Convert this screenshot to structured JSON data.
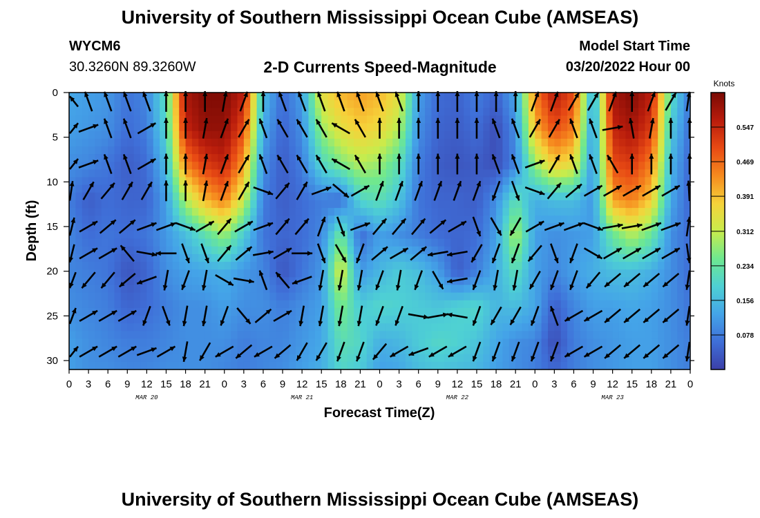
{
  "header": {
    "title": "University of Southern Mississippi Ocean Cube (AMSEAS)",
    "station": "WYCM6",
    "coords": "30.3260N  89.3260W",
    "chart_title": "2-D Currents Speed-Magnitude",
    "model_start_label": "Model Start Time",
    "model_start_value": "03/20/2022 Hour 00"
  },
  "footer": {
    "title": "University of Southern Mississippi Ocean Cube (AMSEAS)"
  },
  "colors": {
    "scale": [
      "#3b3fa8",
      "#3f6fd8",
      "#44a4e8",
      "#4ed0d4",
      "#6ee890",
      "#c8ec4c",
      "#f6d23a",
      "#f68a1e",
      "#e84a14",
      "#b81c0c",
      "#7a0a04"
    ],
    "arrow": "#000000"
  },
  "chart_data": {
    "type": "heatmap",
    "title": "2-D Currents Speed-Magnitude",
    "xlabel": "Forecast Time(Z)",
    "ylabel": "Depth (ft)",
    "x_ticks": [
      "0",
      "3",
      "6",
      "9",
      "12",
      "15",
      "18",
      "21",
      "0",
      "3",
      "6",
      "9",
      "12",
      "15",
      "18",
      "21",
      "0",
      "3",
      "6",
      "9",
      "12",
      "15",
      "18",
      "21",
      "0",
      "3",
      "6",
      "9",
      "12",
      "15",
      "18",
      "21",
      "0"
    ],
    "x_date_labels": [
      {
        "label": "MAR 20",
        "x_hour": 12
      },
      {
        "label": "MAR 21",
        "x_hour": 36
      },
      {
        "label": "MAR 22",
        "x_hour": 60
      },
      {
        "label": "MAR 23",
        "x_hour": 84
      }
    ],
    "xlim": [
      0,
      96
    ],
    "y_ticks": [
      "0",
      "5",
      "10",
      "15",
      "20",
      "25",
      "30"
    ],
    "ylim": [
      0,
      31
    ],
    "y_inverted": true,
    "colorbar": {
      "title": "Knots",
      "ticks": [
        "0.547",
        "0.469",
        "0.391",
        "0.312",
        "0.234",
        "0.156",
        "0.078"
      ],
      "range": [
        0,
        0.625
      ]
    },
    "speed_field": {
      "hours": [
        0,
        3,
        6,
        9,
        12,
        15,
        18,
        21,
        24,
        27,
        30,
        33,
        36,
        39,
        42,
        45,
        48,
        51,
        54,
        57,
        60,
        63,
        66,
        69,
        72,
        75,
        78,
        81,
        84,
        87,
        90,
        93,
        96
      ],
      "depths": [
        0,
        4,
        8,
        12,
        16,
        20,
        24,
        28,
        31
      ],
      "values": [
        [
          0.13,
          0.12,
          0.11,
          0.07,
          0.09,
          0.22,
          0.58,
          0.62,
          0.62,
          0.56,
          0.16,
          0.06,
          0.12,
          0.35,
          0.4,
          0.42,
          0.4,
          0.35,
          0.12,
          0.06,
          0.05,
          0.08,
          0.05,
          0.13,
          0.45,
          0.57,
          0.5,
          0.12,
          0.58,
          0.62,
          0.56,
          0.22,
          0.07
        ],
        [
          0.12,
          0.11,
          0.1,
          0.06,
          0.08,
          0.2,
          0.55,
          0.6,
          0.6,
          0.5,
          0.13,
          0.05,
          0.1,
          0.28,
          0.35,
          0.38,
          0.36,
          0.3,
          0.1,
          0.05,
          0.04,
          0.06,
          0.02,
          0.1,
          0.4,
          0.5,
          0.45,
          0.1,
          0.55,
          0.58,
          0.52,
          0.18,
          0.06
        ],
        [
          0.1,
          0.09,
          0.07,
          0.04,
          0.06,
          0.16,
          0.45,
          0.52,
          0.55,
          0.42,
          0.1,
          0.04,
          0.08,
          0.2,
          0.26,
          0.3,
          0.28,
          0.22,
          0.08,
          0.04,
          0.03,
          0.04,
          0.02,
          0.09,
          0.28,
          0.38,
          0.35,
          0.1,
          0.5,
          0.52,
          0.45,
          0.15,
          0.05
        ],
        [
          0.08,
          0.04,
          0.06,
          0.05,
          0.05,
          0.12,
          0.3,
          0.4,
          0.45,
          0.32,
          0.08,
          0.04,
          0.06,
          0.08,
          0.06,
          0.2,
          0.22,
          0.17,
          0.07,
          0.05,
          0.05,
          0.04,
          0.1,
          0.22,
          0.14,
          0.16,
          0.16,
          0.11,
          0.42,
          0.45,
          0.38,
          0.13,
          0.05
        ],
        [
          0.09,
          0.06,
          0.07,
          0.06,
          0.07,
          0.11,
          0.16,
          0.22,
          0.28,
          0.18,
          0.07,
          0.05,
          0.06,
          0.09,
          0.25,
          0.06,
          0.12,
          0.1,
          0.08,
          0.06,
          0.05,
          0.06,
          0.12,
          0.3,
          0.12,
          0.1,
          0.11,
          0.12,
          0.24,
          0.3,
          0.24,
          0.1,
          0.06
        ],
        [
          0.09,
          0.08,
          0.07,
          0.03,
          0.05,
          0.1,
          0.12,
          0.13,
          0.14,
          0.11,
          0.09,
          0.03,
          0.07,
          0.11,
          0.34,
          0.11,
          0.15,
          0.18,
          0.16,
          0.12,
          0.04,
          0.08,
          0.14,
          0.22,
          0.12,
          0.09,
          0.12,
          0.14,
          0.16,
          0.16,
          0.14,
          0.1,
          0.06
        ],
        [
          0.1,
          0.09,
          0.08,
          0.05,
          0.06,
          0.08,
          0.1,
          0.1,
          0.12,
          0.1,
          0.1,
          0.08,
          0.1,
          0.12,
          0.26,
          0.18,
          0.2,
          0.19,
          0.18,
          0.17,
          0.19,
          0.2,
          0.15,
          0.16,
          0.13,
          0.04,
          0.09,
          0.12,
          0.12,
          0.13,
          0.12,
          0.1,
          0.07
        ],
        [
          0.12,
          0.1,
          0.09,
          0.08,
          0.08,
          0.09,
          0.1,
          0.1,
          0.1,
          0.08,
          0.09,
          0.09,
          0.11,
          0.13,
          0.22,
          0.2,
          0.14,
          0.15,
          0.18,
          0.2,
          0.19,
          0.17,
          0.13,
          0.1,
          0.09,
          0.02,
          0.08,
          0.1,
          0.11,
          0.12,
          0.12,
          0.1,
          0.08
        ],
        [
          0.12,
          0.1,
          0.1,
          0.09,
          0.09,
          0.1,
          0.1,
          0.1,
          0.09,
          0.08,
          0.09,
          0.1,
          0.12,
          0.14,
          0.2,
          0.18,
          0.12,
          0.13,
          0.16,
          0.17,
          0.16,
          0.15,
          0.12,
          0.1,
          0.08,
          0.05,
          0.08,
          0.1,
          0.11,
          0.12,
          0.12,
          0.1,
          0.08
        ]
      ]
    },
    "vectors": {
      "hours": [
        0,
        3,
        6,
        9,
        12,
        15,
        18,
        21,
        24,
        27,
        30,
        33,
        36,
        39,
        42,
        45,
        48,
        51,
        54,
        57,
        60,
        63,
        66,
        69,
        72,
        75,
        78,
        81,
        84,
        87,
        90,
        93,
        96
      ],
      "depths": [
        1,
        4,
        8,
        11,
        15,
        18,
        21,
        25,
        29
      ],
      "directions_deg": [
        [
          -60,
          -20,
          -20,
          -20,
          -20,
          0,
          0,
          0,
          10,
          20,
          0,
          -20,
          -20,
          -20,
          -20,
          -20,
          -20,
          -20,
          0,
          0,
          0,
          0,
          0,
          0,
          20,
          20,
          30,
          30,
          20,
          0,
          20,
          30,
          20
        ],
        [
          60,
          70,
          -20,
          -20,
          60,
          0,
          0,
          10,
          20,
          30,
          -20,
          -30,
          -30,
          -30,
          -60,
          -30,
          0,
          0,
          0,
          0,
          0,
          0,
          -20,
          -20,
          30,
          30,
          -20,
          -20,
          80,
          -10,
          10,
          0,
          0
        ],
        [
          60,
          70,
          -20,
          -20,
          60,
          0,
          0,
          10,
          20,
          30,
          -20,
          -30,
          -30,
          -30,
          -60,
          -30,
          0,
          0,
          0,
          0,
          0,
          0,
          -20,
          -20,
          70,
          30,
          -20,
          -20,
          -30,
          0,
          0,
          0,
          0
        ],
        [
          20,
          30,
          40,
          30,
          30,
          0,
          0,
          10,
          20,
          30,
          110,
          40,
          30,
          70,
          130,
          60,
          20,
          20,
          20,
          20,
          20,
          20,
          -160,
          160,
          110,
          40,
          50,
          60,
          60,
          60,
          60,
          60,
          -10
        ],
        [
          30,
          60,
          50,
          50,
          70,
          70,
          110,
          60,
          40,
          60,
          70,
          40,
          40,
          20,
          160,
          70,
          40,
          40,
          40,
          50,
          60,
          160,
          150,
          -150,
          60,
          70,
          70,
          110,
          80,
          80,
          70,
          70,
          20
        ],
        [
          -150,
          60,
          60,
          -40,
          100,
          -90,
          160,
          160,
          40,
          50,
          80,
          60,
          90,
          160,
          150,
          -160,
          50,
          60,
          50,
          -100,
          -100,
          -150,
          -160,
          -160,
          -140,
          160,
          -160,
          120,
          60,
          60,
          60,
          60,
          160
        ],
        [
          -140,
          -140,
          -140,
          -130,
          -110,
          -170,
          -160,
          -170,
          120,
          100,
          -20,
          -40,
          -110,
          -170,
          -170,
          -170,
          -160,
          -170,
          -160,
          150,
          -100,
          -160,
          -170,
          -170,
          -150,
          -160,
          -160,
          -140,
          -130,
          -130,
          -130,
          -130,
          -160
        ],
        [
          40,
          60,
          60,
          60,
          -160,
          160,
          -170,
          -170,
          -160,
          140,
          50,
          60,
          -170,
          -170,
          -170,
          -170,
          -160,
          -160,
          100,
          80,
          -80,
          -160,
          -150,
          -150,
          -160,
          -20,
          -120,
          -120,
          -130,
          -130,
          -130,
          -130,
          -160
        ],
        [
          60,
          60,
          60,
          60,
          70,
          60,
          -170,
          -150,
          -120,
          -130,
          -120,
          -130,
          -150,
          -150,
          -160,
          -160,
          -140,
          -120,
          -110,
          -120,
          -120,
          -160,
          -160,
          -160,
          -160,
          -160,
          -120,
          -120,
          -130,
          -130,
          -130,
          -130,
          -160
        ]
      ]
    }
  }
}
